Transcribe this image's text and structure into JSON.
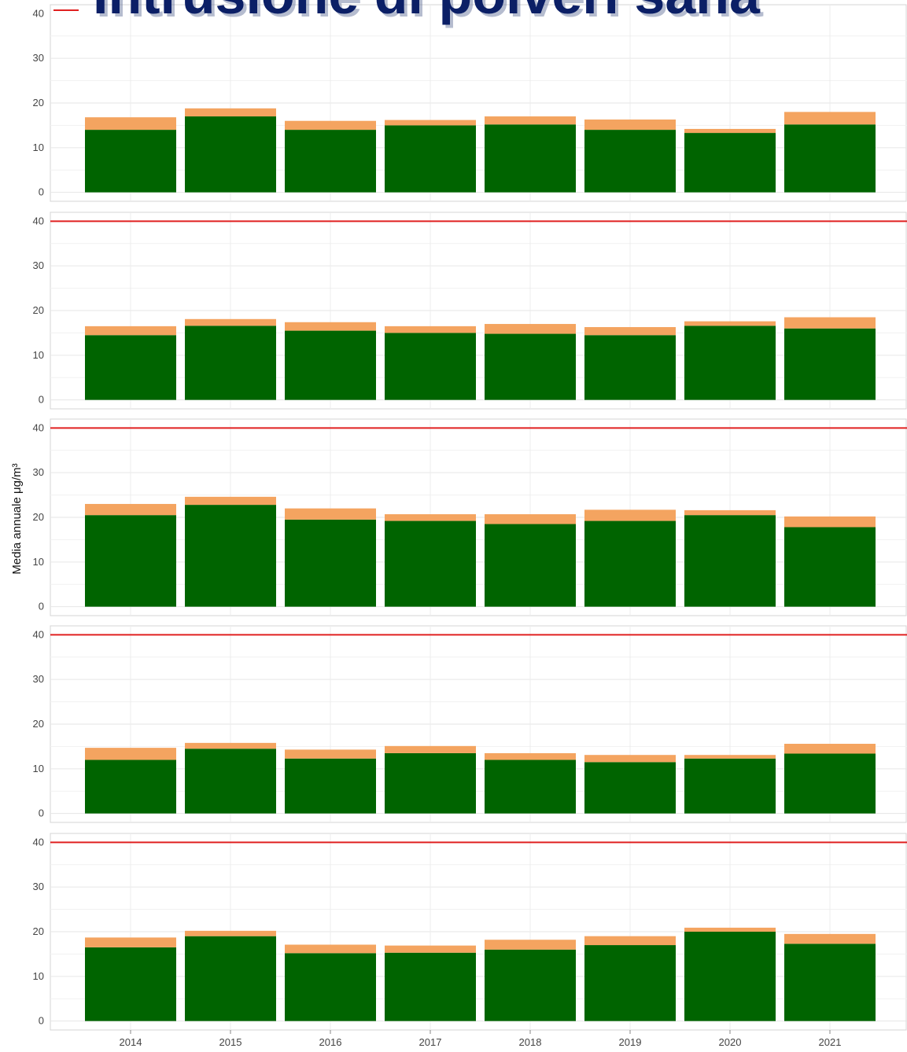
{
  "title": "Intrusione di polveri saha",
  "chart_data": {
    "type": "bar",
    "stacked": true,
    "ylabel": "Media annuale μg/m³",
    "categories": [
      "2014",
      "2015",
      "2016",
      "2017",
      "2018",
      "2019",
      "2020",
      "2021"
    ],
    "yticks": [
      0,
      10,
      20,
      30,
      40
    ],
    "ylim": [
      -2,
      42
    ],
    "limit_value": 40,
    "grid": true,
    "colors": {
      "base": "#006400",
      "dust": "#f4a460",
      "limit": "#e02020",
      "grid": "#e6e6e6"
    },
    "panels": [
      {
        "base": [
          14.0,
          17.0,
          14.0,
          15.0,
          15.2,
          14.0,
          13.3,
          15.2
        ],
        "dust": [
          2.8,
          1.8,
          2.0,
          1.2,
          1.8,
          2.3,
          0.9,
          2.8
        ]
      },
      {
        "base": [
          14.5,
          16.6,
          15.5,
          15.0,
          14.8,
          14.5,
          16.6,
          16.0
        ],
        "dust": [
          2.0,
          1.5,
          1.9,
          1.5,
          2.2,
          1.8,
          1.0,
          2.5
        ]
      },
      {
        "base": [
          20.5,
          22.8,
          19.5,
          19.2,
          18.5,
          19.2,
          20.5,
          17.8
        ],
        "dust": [
          2.5,
          1.8,
          2.5,
          1.5,
          2.2,
          2.5,
          1.1,
          2.4
        ]
      },
      {
        "base": [
          12.0,
          14.5,
          12.3,
          13.5,
          12.0,
          11.5,
          12.3,
          13.4
        ],
        "dust": [
          2.7,
          1.3,
          2.0,
          1.6,
          1.5,
          1.6,
          0.8,
          2.2
        ]
      },
      {
        "base": [
          16.5,
          19.0,
          15.2,
          15.3,
          16.0,
          17.0,
          20.0,
          17.3
        ],
        "dust": [
          2.2,
          1.2,
          1.9,
          1.6,
          2.2,
          2.0,
          0.9,
          2.2
        ]
      }
    ]
  }
}
